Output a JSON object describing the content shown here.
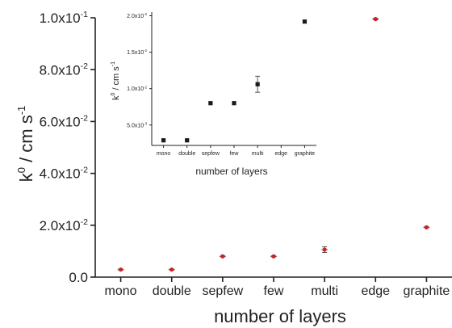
{
  "chart_data": [
    {
      "type": "scatter",
      "categories": [
        "mono",
        "double",
        "sepfew",
        "few",
        "multi",
        "edge",
        "graphite"
      ],
      "values": [
        0.0029,
        0.0029,
        0.008,
        0.008,
        0.0106,
        0.0995,
        0.0192
      ],
      "errors": [
        0.0002,
        0.0002,
        0.0002,
        0.0002,
        0.0011,
        0.0003,
        0.0002
      ],
      "xlabel": "number of layers",
      "ylabel_main": "k",
      "ylabel_sup": "0",
      "ylabel_unit": " / cm s",
      "ylabel_unit_sup": "-1",
      "ylim": [
        0,
        0.1
      ],
      "yticks": [
        "0.0",
        "2.0x10",
        "4.0x10",
        "6.0x10",
        "8.0x10",
        "1.0x10"
      ],
      "ytick_exps": [
        "",
        "-2",
        "-2",
        "-2",
        "-2",
        "-1"
      ],
      "marker_color": "#cc2222",
      "grid": false
    },
    {
      "type": "scatter",
      "categories": [
        "mono",
        "double",
        "sepfew",
        "few",
        "multi",
        "edge",
        "graphite"
      ],
      "values": [
        0.0029,
        0.0029,
        0.008,
        0.008,
        0.0106,
        null,
        0.0192
      ],
      "errors": [
        0,
        0,
        0,
        0,
        0.0011,
        0,
        0
      ],
      "xlabel": "number of layers",
      "ylabel_main": "k",
      "ylabel_sup": "0",
      "ylabel_unit": " / cm s",
      "ylabel_unit_sup": "-1",
      "ylim": [
        0.0022,
        0.0205
      ],
      "ytick_values": [
        0.005,
        0.01,
        0.015,
        0.02
      ],
      "yticks": [
        "5.0x10",
        "1.0x10",
        "1.5x10",
        "2.0x10"
      ],
      "ytick_exps": [
        "-3",
        "-2",
        "-2",
        "-2"
      ],
      "marker_color": "#1a1a1a",
      "grid": false
    }
  ]
}
